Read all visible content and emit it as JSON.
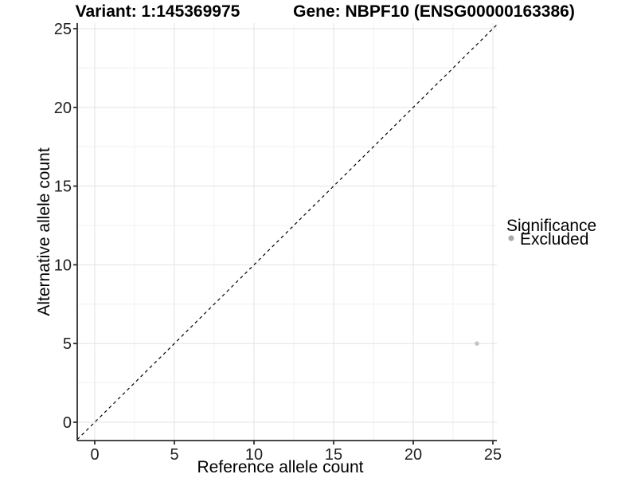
{
  "chart_data": {
    "type": "scatter",
    "title_variant": "Variant: 1:145369975",
    "title_gene": "Gene: NBPF10 (ENSG00000163386)",
    "xlabel": "Reference allele count",
    "ylabel": "Alternative allele count",
    "xlim": [
      -1.1,
      25.25
    ],
    "ylim": [
      -1.17,
      25.35
    ],
    "xticks": [
      0,
      5,
      10,
      15,
      20,
      25
    ],
    "yticks": [
      0,
      5,
      10,
      15,
      20,
      25
    ],
    "minor_ticks_x": [
      2.5,
      7.5,
      12.5,
      17.5,
      22.5
    ],
    "minor_ticks_y": [
      2.5,
      7.5,
      12.5,
      17.5,
      22.5
    ],
    "grid": true,
    "reference_line": {
      "type": "identity",
      "style": "dashed",
      "color": "#000000"
    },
    "series": [
      {
        "name": "Excluded",
        "color": "#c4c4c4",
        "points": [
          {
            "x": 24,
            "y": 5
          }
        ]
      }
    ],
    "legend": {
      "title": "Significance",
      "position": "right",
      "entries": [
        {
          "label": "Excluded",
          "color": "#aaaaaa"
        }
      ]
    },
    "colors": {
      "grid_major": "#e3e3e3",
      "grid_minor": "#f0f0f0",
      "axis_line": "#2e2e2e",
      "tick_mark": "#2e2e2e",
      "background": "#ffffff"
    }
  }
}
